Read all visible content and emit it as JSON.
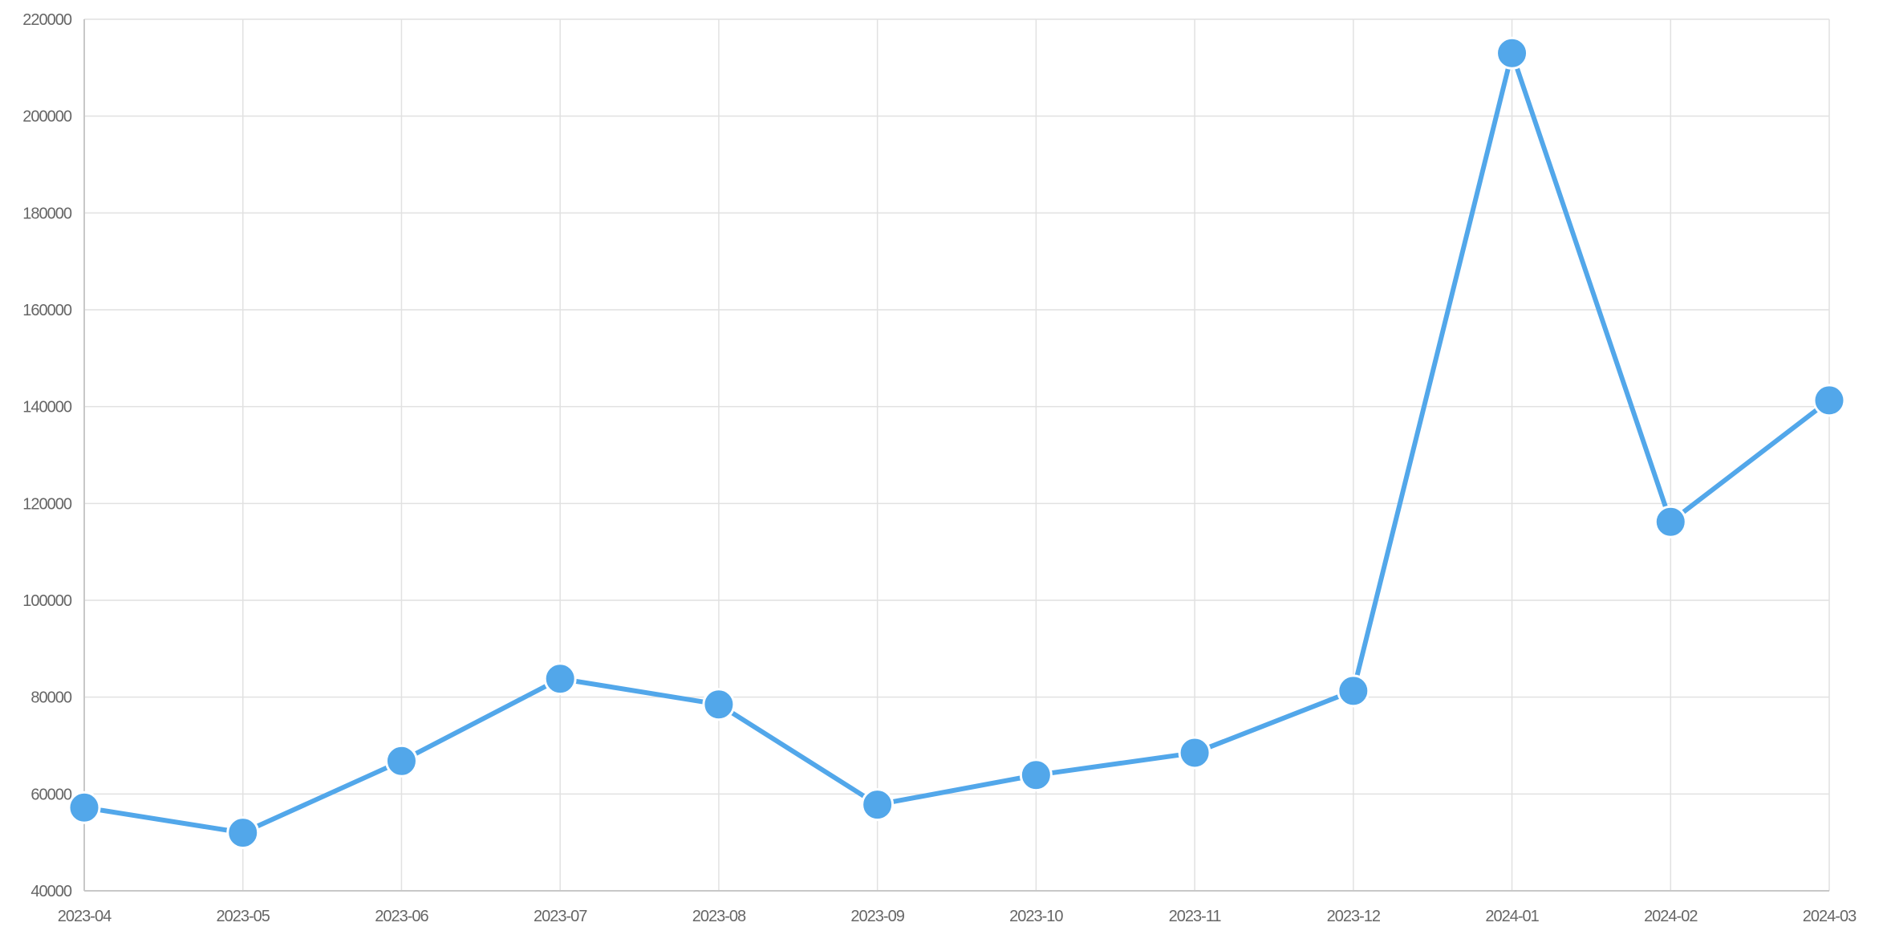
{
  "colors": {
    "series": "#52a7ea",
    "grid": "#e1e1e1",
    "axis": "#c8c8c8",
    "tick_text": "#666666",
    "background": "#ffffff"
  },
  "chart_data": {
    "type": "line",
    "title": "",
    "xlabel": "",
    "ylabel": "",
    "grid": true,
    "legend": "none",
    "x": [
      "2023-04",
      "2023-05",
      "2023-06",
      "2023-07",
      "2023-08",
      "2023-09",
      "2023-10",
      "2023-11",
      "2023-12",
      "2024-01",
      "2024-02",
      "2024-03"
    ],
    "series": [
      {
        "values": [
          57200,
          52000,
          66800,
          83800,
          78500,
          57800,
          63900,
          68500,
          81300,
          213000,
          116200,
          141300
        ]
      }
    ],
    "ylim": [
      40000,
      220000
    ],
    "yticks": [
      "40000",
      "60000",
      "80000",
      "100000",
      "120000",
      "140000",
      "160000",
      "180000",
      "200000",
      "220000"
    ]
  }
}
